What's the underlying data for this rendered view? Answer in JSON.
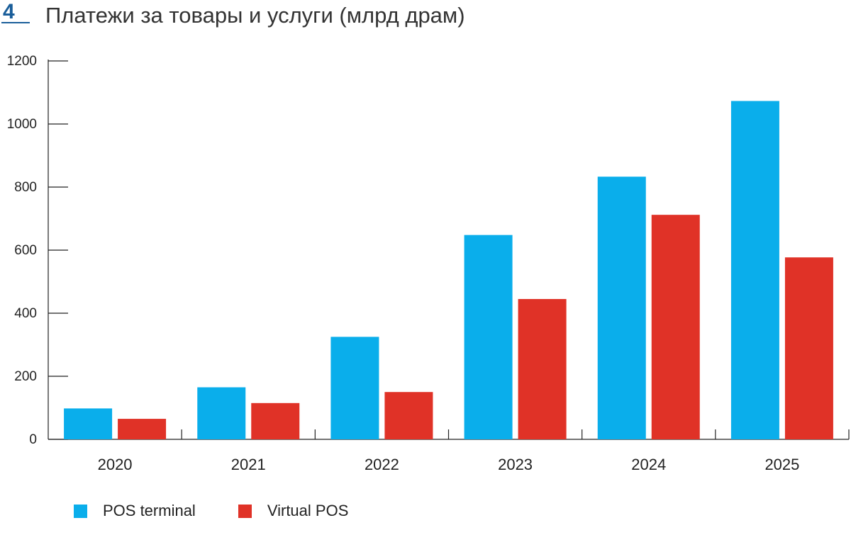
{
  "header": {
    "figure_number": "4",
    "title": "Платежи за товары и услуги (млрд драм)"
  },
  "chart_data": {
    "type": "bar",
    "title": "Платежи за товары и услуги (млрд драм)",
    "xlabel": "",
    "ylabel": "",
    "categories": [
      "2020",
      "2021",
      "2022",
      "2023",
      "2024",
      "2025"
    ],
    "series": [
      {
        "name": "POS terminal",
        "color": "#0aaeeb",
        "values": [
          98,
          165,
          325,
          648,
          833,
          1073
        ]
      },
      {
        "name": "Virtual POS",
        "color": "#e03227",
        "values": [
          65,
          115,
          150,
          445,
          712,
          577
        ]
      }
    ],
    "ylim": [
      0,
      1200
    ],
    "yticks": [
      "0",
      "200",
      "400",
      "600",
      "800",
      "1000",
      "1200"
    ],
    "grid": false,
    "legend_position": "bottom-left"
  }
}
